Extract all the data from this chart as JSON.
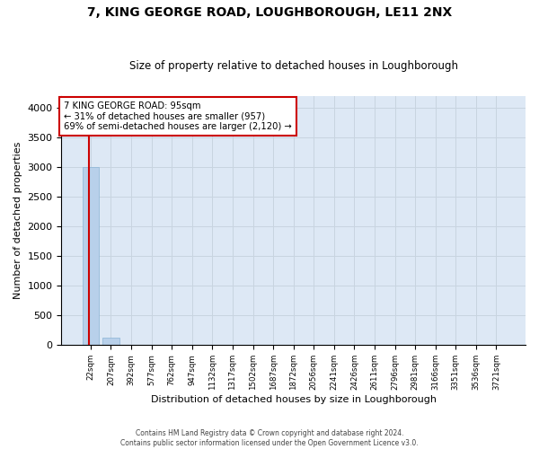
{
  "title": "7, KING GEORGE ROAD, LOUGHBOROUGH, LE11 2NX",
  "subtitle": "Size of property relative to detached houses in Loughborough",
  "xlabel": "Distribution of detached houses by size in Loughborough",
  "ylabel": "Number of detached properties",
  "footer_line1": "Contains HM Land Registry data © Crown copyright and database right 2024.",
  "footer_line2": "Contains public sector information licensed under the Open Government Licence v3.0.",
  "categories": [
    "22sqm",
    "207sqm",
    "392sqm",
    "577sqm",
    "762sqm",
    "947sqm",
    "1132sqm",
    "1317sqm",
    "1502sqm",
    "1687sqm",
    "1872sqm",
    "2056sqm",
    "2241sqm",
    "2426sqm",
    "2611sqm",
    "2796sqm",
    "2981sqm",
    "3166sqm",
    "3351sqm",
    "3536sqm",
    "3721sqm"
  ],
  "values": [
    3000,
    130,
    0,
    0,
    0,
    0,
    0,
    0,
    0,
    0,
    0,
    0,
    0,
    0,
    0,
    0,
    0,
    0,
    0,
    0,
    0
  ],
  "bar_color": "#b8d0ea",
  "bar_edge_color": "#8ab4d4",
  "grid_color": "#c8d4e0",
  "background_color": "#dde8f5",
  "annotation_line1": "7 KING GEORGE ROAD: 95sqm",
  "annotation_line2": "← 31% of detached houses are smaller (957)",
  "annotation_line3": "69% of semi-detached houses are larger (2,120) →",
  "annotation_box_facecolor": "#ffffff",
  "annotation_box_edgecolor": "#cc0000",
  "red_line_color": "#cc0000",
  "red_line_x": -0.07,
  "ylim_max": 4200,
  "yticks": [
    0,
    500,
    1000,
    1500,
    2000,
    2500,
    3000,
    3500,
    4000
  ]
}
